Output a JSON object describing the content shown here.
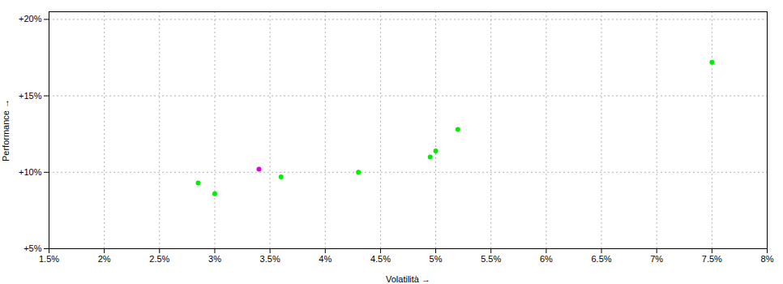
{
  "chart_data": {
    "type": "scatter",
    "xlabel": "Volatilità",
    "ylabel": "Performance",
    "xlim": [
      0.015,
      0.08
    ],
    "ylim": [
      0.05,
      0.205
    ],
    "xticks": [
      {
        "value": 0.015,
        "label": "1.5%"
      },
      {
        "value": 0.02,
        "label": "2%"
      },
      {
        "value": 0.025,
        "label": "2.5%"
      },
      {
        "value": 0.03,
        "label": "3%"
      },
      {
        "value": 0.035,
        "label": "3.5%"
      },
      {
        "value": 0.04,
        "label": "4%"
      },
      {
        "value": 0.045,
        "label": "4.5%"
      },
      {
        "value": 0.05,
        "label": "5%"
      },
      {
        "value": 0.055,
        "label": "5.5%"
      },
      {
        "value": 0.06,
        "label": "6%"
      },
      {
        "value": 0.065,
        "label": "6.5%"
      },
      {
        "value": 0.07,
        "label": "7%"
      },
      {
        "value": 0.075,
        "label": "7.5%"
      },
      {
        "value": 0.08,
        "label": "8%"
      }
    ],
    "yticks": [
      {
        "value": 0.05,
        "label": "+5%"
      },
      {
        "value": 0.1,
        "label": "+10%"
      },
      {
        "value": 0.15,
        "label": "+15%"
      },
      {
        "value": 0.2,
        "label": "+20%"
      }
    ],
    "grid": true,
    "series": [
      {
        "color": "#00ee00",
        "x": [
          0.0285,
          0.03,
          0.036,
          0.043,
          0.05,
          0.0495,
          0.052,
          0.075
        ],
        "values": [
          0.093,
          0.086,
          0.097,
          0.1,
          0.114,
          0.11,
          0.128,
          0.172
        ]
      },
      {
        "color": "#dd00dd",
        "x": [
          0.034
        ],
        "values": [
          0.102
        ]
      }
    ]
  }
}
